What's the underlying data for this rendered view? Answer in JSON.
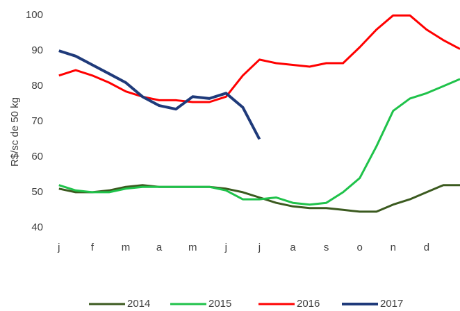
{
  "chart_data": {
    "type": "line",
    "y_label": "R$/sc de 50 kg",
    "x": [
      0,
      0.5,
      1,
      1.5,
      2,
      2.5,
      3,
      3.5,
      4,
      4.5,
      5,
      5.5,
      6,
      6.5,
      7,
      7.5,
      8,
      8.5,
      9,
      9.5,
      10,
      10.5,
      11,
      11.5,
      12
    ],
    "xlim": [
      -0.1,
      12
    ],
    "xticks": [
      {
        "value": 0,
        "label": "j"
      },
      {
        "value": 1,
        "label": "f"
      },
      {
        "value": 2,
        "label": "m"
      },
      {
        "value": 3,
        "label": "a"
      },
      {
        "value": 4,
        "label": "m"
      },
      {
        "value": 5,
        "label": "j"
      },
      {
        "value": 6,
        "label": "j"
      },
      {
        "value": 7,
        "label": "a"
      },
      {
        "value": 8,
        "label": "s"
      },
      {
        "value": 9,
        "label": "o"
      },
      {
        "value": 10,
        "label": "n"
      },
      {
        "value": 11,
        "label": "d"
      }
    ],
    "ylim": [
      38,
      102
    ],
    "yticks": [
      40,
      50,
      60,
      70,
      80,
      90,
      100
    ],
    "legend": "bottom",
    "series": [
      {
        "name": "2014",
        "color": "#3b5a1f",
        "values": [
          51,
          50,
          50,
          50.5,
          51.5,
          52,
          51.5,
          51.5,
          51.5,
          51.5,
          51,
          50,
          48.5,
          47,
          46,
          45.5,
          45.5,
          45,
          44.5,
          44.5,
          46.5,
          48,
          50,
          52,
          52
        ]
      },
      {
        "name": "2015",
        "color": "#1fc24a",
        "values": [
          52,
          50.5,
          50,
          50,
          51,
          51.5,
          51.5,
          51.5,
          51.5,
          51.5,
          50.5,
          48,
          48,
          48.5,
          47,
          46.5,
          47,
          50,
          54,
          63,
          73,
          76.5,
          78,
          80,
          82
        ]
      },
      {
        "name": "2016",
        "color": "#ff0000",
        "values": [
          83,
          84.5,
          83,
          81,
          78.5,
          77,
          76,
          76,
          75.5,
          75.5,
          77,
          83,
          87.5,
          86.5,
          86,
          85.5,
          86.5,
          86.5,
          91,
          96,
          100,
          100,
          96,
          93,
          90.5
        ]
      },
      {
        "name": "2017",
        "color": "#1f3a7a",
        "values": [
          90,
          88.5,
          86,
          83.5,
          81,
          77,
          74.5,
          73.5,
          77,
          76.5,
          78,
          74,
          65,
          null,
          null,
          null,
          null,
          null,
          null,
          null,
          null,
          null,
          null,
          null,
          null
        ]
      }
    ]
  }
}
